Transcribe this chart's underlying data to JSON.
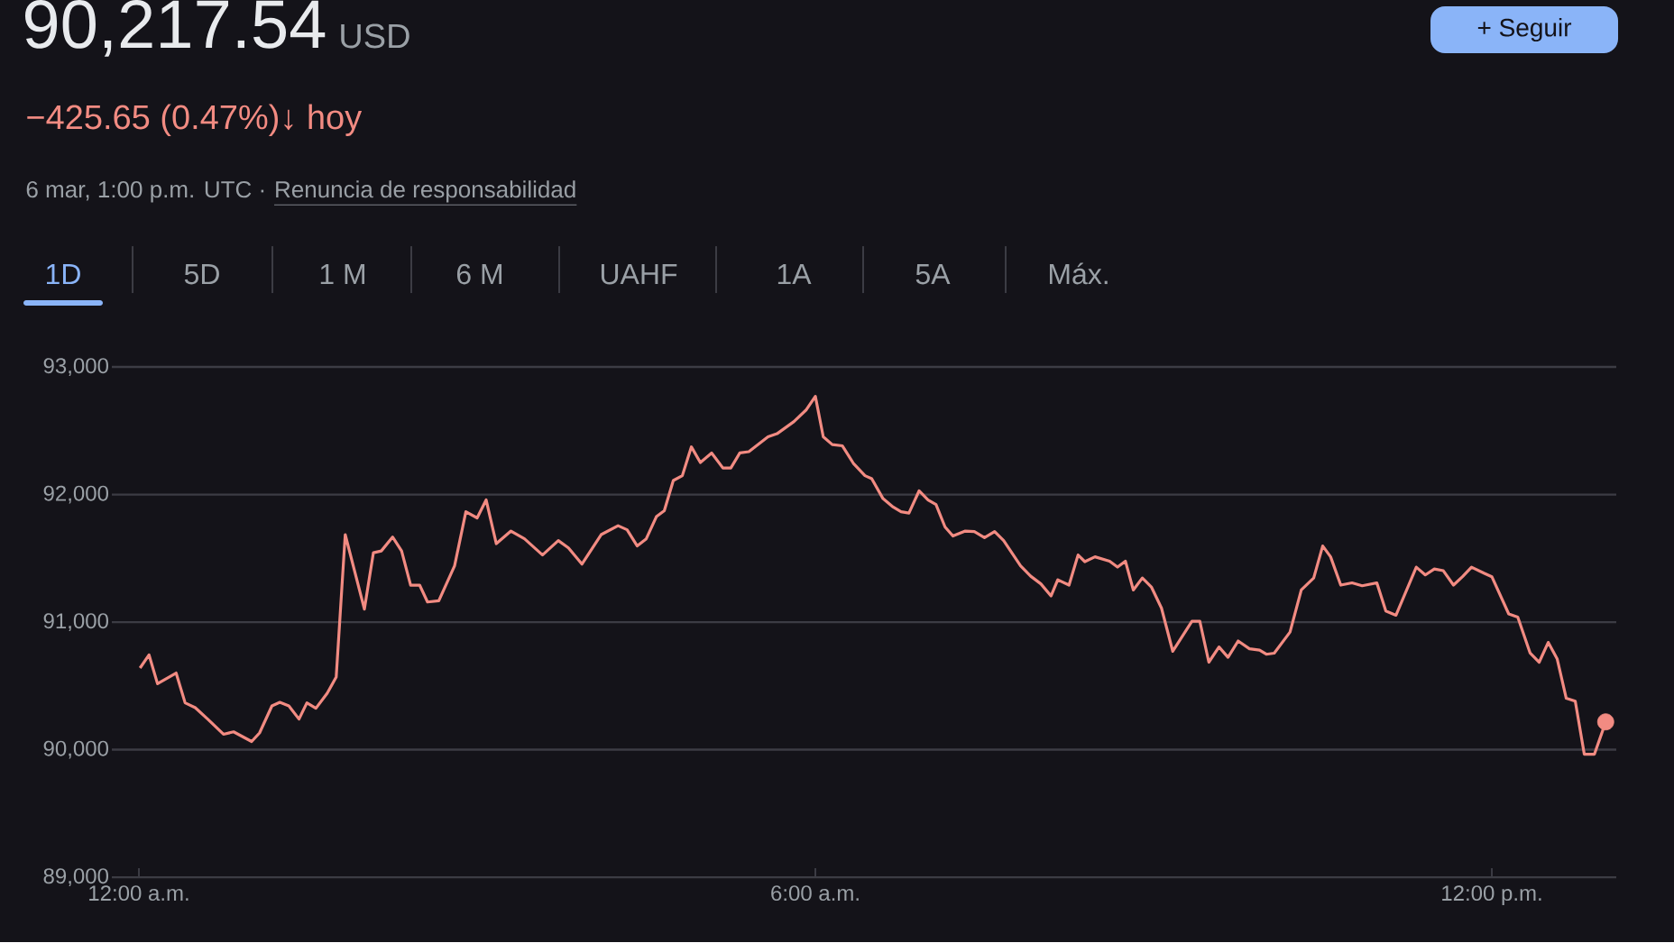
{
  "chart_data": {
    "type": "line",
    "title": "90,217.54",
    "annotations": [
      "USD",
      "−425.65 (0.47%)↓ hoy",
      "6 mar, 1:00 p.m. UTC ·",
      "Renuncia de responsabilidad",
      "1D",
      "5D",
      "1 M",
      "6 M",
      "UAHF",
      "1A",
      "5A",
      "Máx.",
      "+ Seguir"
    ],
    "x": [
      0.01,
      0.09,
      0.165,
      0.33,
      0.41,
      0.5,
      0.61,
      0.75,
      0.84,
      1.0,
      1.07,
      1.18,
      1.25,
      1.33,
      1.42,
      1.49,
      1.57,
      1.67,
      1.75,
      1.83,
      2.0,
      2.08,
      2.15,
      2.25,
      2.33,
      2.41,
      2.49,
      2.56,
      2.66,
      2.8,
      2.9,
      3.0,
      3.08,
      3.17,
      3.3,
      3.42,
      3.58,
      3.72,
      3.81,
      3.93,
      4.1,
      4.25,
      4.33,
      4.42,
      4.5,
      4.59,
      4.66,
      4.74,
      4.82,
      4.9,
      4.98,
      5.08,
      5.18,
      5.25,
      5.33,
      5.41,
      5.58,
      5.66,
      5.81,
      5.92,
      6.0,
      6.07,
      6.15,
      6.24,
      6.34,
      6.44,
      6.5,
      6.6,
      6.69,
      6.76,
      6.83,
      6.92,
      7.0,
      7.07,
      7.15,
      7.22,
      7.33,
      7.41,
      7.5,
      7.59,
      7.67,
      7.82,
      7.91,
      8.0,
      8.09,
      8.15,
      8.25,
      8.33,
      8.39,
      8.48,
      8.61,
      8.68,
      8.75,
      8.82,
      8.9,
      8.98,
      9.07,
      9.17,
      9.34,
      9.41,
      9.49,
      9.58,
      9.66,
      9.75,
      9.85,
      9.94,
      10.0,
      10.07,
      10.21,
      10.31,
      10.42,
      10.5,
      10.57,
      10.66,
      10.76,
      10.85,
      10.98,
      11.06,
      11.15,
      11.33,
      11.41,
      11.49,
      11.57,
      11.66,
      11.74,
      11.82,
      11.93,
      12.0,
      12.15,
      12.23,
      12.34,
      12.42,
      12.5,
      12.58,
      12.66,
      12.74,
      12.82,
      12.91,
      13.01
    ],
    "series": [
      {
        "color": "#f28b82",
        "marker": "none",
        "line_style": "solid",
        "values": [
          90640,
          90743,
          90517,
          90601,
          90367,
          90329,
          90240,
          90121,
          90140,
          90064,
          90131,
          90343,
          90371,
          90343,
          90240,
          90367,
          90325,
          90442,
          90569,
          91686,
          91102,
          91544,
          91558,
          91667,
          91558,
          91290,
          91290,
          91158,
          91167,
          91441,
          91865,
          91817,
          91958,
          91615,
          91714,
          91653,
          91526,
          91639,
          91582,
          91455,
          91686,
          91756,
          91724,
          91597,
          91653,
          91827,
          91873,
          92110,
          92148,
          92374,
          92251,
          92326,
          92208,
          92208,
          92326,
          92336,
          92453,
          92477,
          92572,
          92665,
          92770,
          92453,
          92392,
          92382,
          92241,
          92148,
          92124,
          91968,
          91902,
          91865,
          91855,
          92029,
          91958,
          91922,
          91746,
          91675,
          91714,
          91710,
          91662,
          91710,
          91639,
          91441,
          91360,
          91300,
          91205,
          91332,
          91290,
          91526,
          91474,
          91512,
          91478,
          91431,
          91478,
          91252,
          91346,
          91276,
          91110,
          90771,
          91007,
          91007,
          90686,
          90805,
          90724,
          90852,
          90791,
          90781,
          90748,
          90757,
          90922,
          91252,
          91346,
          91597,
          91512,
          91290,
          91308,
          91285,
          91308,
          91087,
          91054,
          91431,
          91370,
          91417,
          91403,
          91290,
          91356,
          91431,
          91384,
          91356,
          91064,
          91040,
          90757,
          90686,
          90841,
          90710,
          90403,
          90380,
          89965,
          89965,
          90218
        ]
      },
      {
        "type": "scatter",
        "color": "#f28b82",
        "marker": "circle",
        "x": [
          13.01
        ],
        "values": [
          90218
        ]
      }
    ],
    "xlim": [
      -0.24,
      13.104
    ],
    "ylim": [
      89000,
      93000
    ],
    "xticks": [
      {
        "value": 0,
        "label": "12:00 a.m."
      },
      {
        "value": 6,
        "label": "6:00 a.m."
      },
      {
        "value": 12,
        "label": "12:00 p.m."
      }
    ],
    "yticks": [
      {
        "value": 89000,
        "label": "89,000"
      },
      {
        "value": 90000,
        "label": "90,000"
      },
      {
        "value": 91000,
        "label": "91,000"
      },
      {
        "value": 92000,
        "label": "92,000"
      },
      {
        "value": 93000,
        "label": "93,000"
      }
    ],
    "grid": "y"
  }
}
